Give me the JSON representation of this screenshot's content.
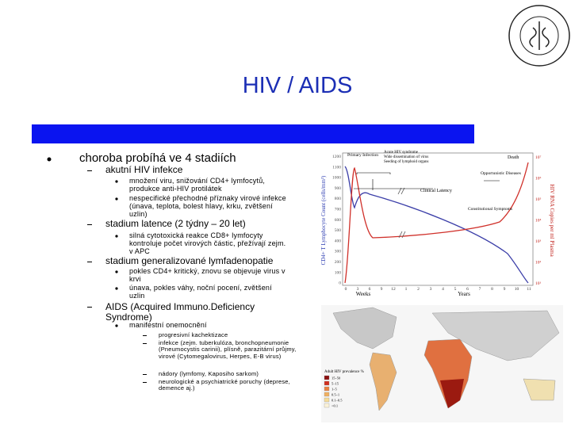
{
  "header": {
    "title": "HIV / AIDS"
  },
  "outline": {
    "text": "choroba probíhá ve 4 stadiích",
    "items": [
      {
        "text": "akutní HIV infekce",
        "items": [
          "množení viru, snižování CD4+ lymfocytů, produkce anti-HIV protilátek",
          "nespecifické přechodné příznaky virové infekce (únava, teplota, bolest hlavy, krku, zvětšení uzlin)"
        ]
      },
      {
        "text": "stadium latence (2 týdny – 20 let)",
        "items": [
          "silná cytotoxická reakce CD8+ lymfocyty kontroluje počet virových částic, přežívají zejm. v APC"
        ]
      },
      {
        "text": "stadium generalizované lymfadenopatie",
        "items": [
          "pokles CD4+ kritický, znovu se objevuje virus v krvi",
          "únava, pokles váhy, noční pocení, zvětšení uzlin"
        ]
      },
      {
        "text": "AIDS (Acquired Immuno.Deficiency Syndrome)",
        "items": [
          {
            "text": "manifestní onemocnění",
            "items": [
              "progresivní kachektizace",
              "infekce (zejm. tuberkulóza, bronchopneumonie (Pneumocystis carinii), plísně, parazitární průjmy, virové (Cytomegalovirus, Herpes, E-B virus)",
              "nádory (lymfomy, Kaposiho sarkom)",
              "neurologické a psychiatrické poruchy (deprese, demence aj.)"
            ]
          }
        ]
      }
    ]
  },
  "graph": {
    "left_axis_label": "CD4+ T Lymphocyte Count (cells/mm³)",
    "right_axis_label": "HIV RNA Copies per ml Plasma",
    "left_ticks": [
      "1200",
      "1100",
      "1000",
      "900",
      "800",
      "700",
      "600",
      "500",
      "400",
      "300",
      "200",
      "100",
      "0"
    ],
    "right_ticks": [
      "10⁷",
      "10⁶",
      "10⁵",
      "10⁴",
      "10³",
      "10²",
      "10¹"
    ],
    "weeks_label": "Weeks",
    "weeks_ticks": [
      "0",
      "3",
      "6",
      "9",
      "12"
    ],
    "years_label": "Years",
    "years_ticks": [
      "1",
      "2",
      "3",
      "4",
      "5",
      "6",
      "7",
      "8",
      "9",
      "10",
      "11"
    ],
    "annotations": [
      "Primary Infection",
      "Acute HIV syndrome",
      "Wide dissemination of virus",
      "Seeding of lymphoid organs",
      "Clinical Latency",
      "Death",
      "Opportunistic Diseases",
      "Constitutional Symptoms"
    ]
  },
  "map": {
    "legend_title": "Adult HIV prevalence %",
    "legend": [
      "15–50",
      "5–15",
      "1–5",
      "0.5–1",
      "0.1–0.5",
      "<0.1"
    ]
  }
}
